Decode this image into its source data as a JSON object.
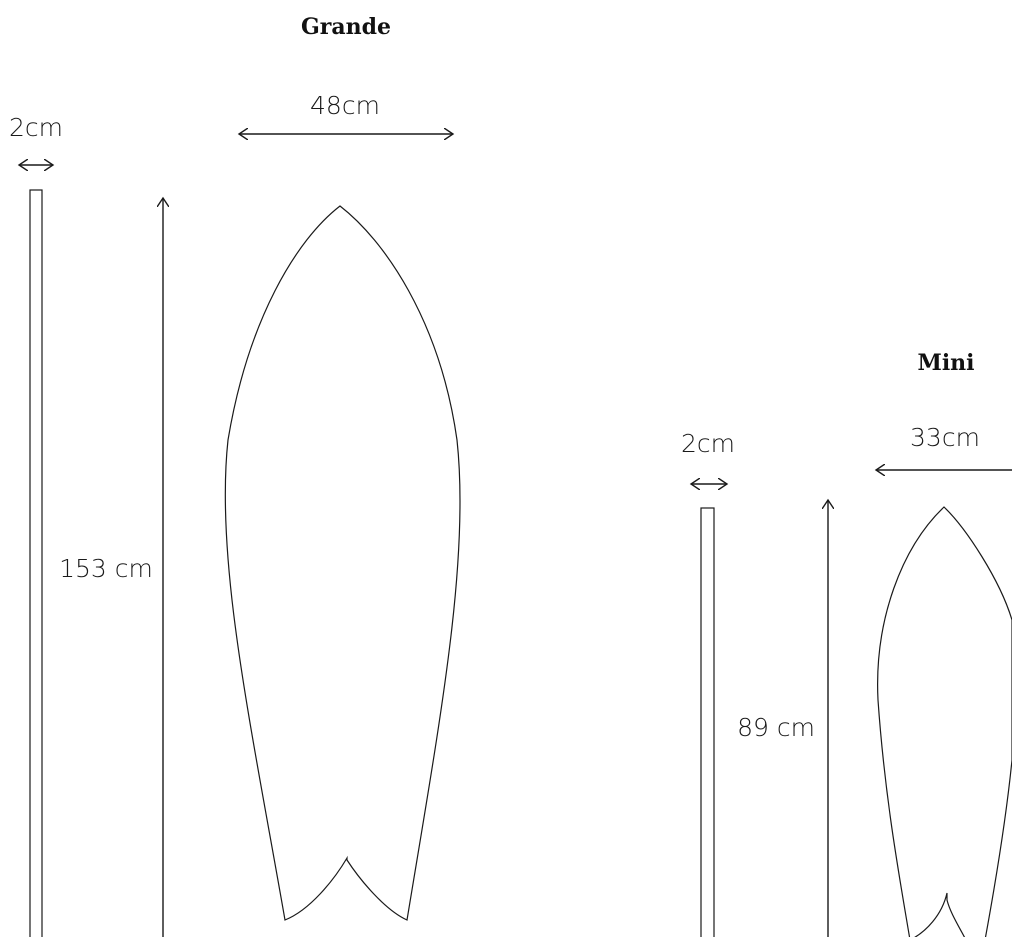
{
  "grande": {
    "title": "Grande",
    "thickness_label": "2cm",
    "width_label": "48cm",
    "height_label": "153 cm"
  },
  "mini": {
    "title": "Mini",
    "thickness_label": "2cm",
    "width_label": "33cm",
    "height_label": "89 cm"
  }
}
